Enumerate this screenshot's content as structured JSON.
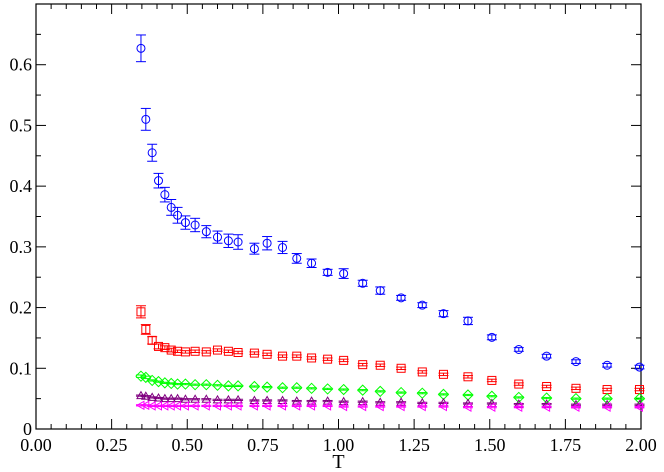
{
  "chart_data": {
    "type": "scatter",
    "title": "",
    "xlabel": "T",
    "ylabel": "",
    "xlim": [
      0.0,
      2.0
    ],
    "ylim": [
      0.0,
      0.7
    ],
    "grid": false,
    "x_ticks": [
      "0.00",
      "0.25",
      "0.50",
      "0.75",
      "1.00",
      "1.25",
      "1.50",
      "1.75",
      "2.00"
    ],
    "y_ticks": [
      "0",
      "0.1",
      "0.2",
      "0.3",
      "0.4",
      "0.5",
      "0.6"
    ],
    "series": [
      {
        "marker": "circle",
        "color": "#0000ff",
        "points": [
          {
            "x": 0.347,
            "y": 0.627,
            "err": 0.022
          },
          {
            "x": 0.363,
            "y": 0.51,
            "err": 0.018
          },
          {
            "x": 0.384,
            "y": 0.455,
            "err": 0.014
          },
          {
            "x": 0.405,
            "y": 0.409,
            "err": 0.012
          },
          {
            "x": 0.426,
            "y": 0.386,
            "err": 0.012
          },
          {
            "x": 0.447,
            "y": 0.365,
            "err": 0.013
          },
          {
            "x": 0.468,
            "y": 0.352,
            "err": 0.013
          },
          {
            "x": 0.494,
            "y": 0.34,
            "err": 0.011
          },
          {
            "x": 0.526,
            "y": 0.336,
            "err": 0.011
          },
          {
            "x": 0.563,
            "y": 0.325,
            "err": 0.01
          },
          {
            "x": 0.6,
            "y": 0.316,
            "err": 0.01
          },
          {
            "x": 0.636,
            "y": 0.31,
            "err": 0.011
          },
          {
            "x": 0.668,
            "y": 0.308,
            "err": 0.012
          },
          {
            "x": 0.722,
            "y": 0.297,
            "err": 0.009
          },
          {
            "x": 0.764,
            "y": 0.306,
            "err": 0.011
          },
          {
            "x": 0.815,
            "y": 0.299,
            "err": 0.01
          },
          {
            "x": 0.862,
            "y": 0.281,
            "err": 0.008
          },
          {
            "x": 0.911,
            "y": 0.273,
            "err": 0.007
          },
          {
            "x": 0.964,
            "y": 0.258,
            "err": 0.005
          },
          {
            "x": 1.017,
            "y": 0.256,
            "err": 0.008
          },
          {
            "x": 1.08,
            "y": 0.24,
            "err": 0.005
          },
          {
            "x": 1.138,
            "y": 0.228,
            "err": 0.006
          },
          {
            "x": 1.207,
            "y": 0.216,
            "err": 0.004
          },
          {
            "x": 1.277,
            "y": 0.204,
            "err": 0.004
          },
          {
            "x": 1.347,
            "y": 0.19,
            "err": 0.005
          },
          {
            "x": 1.428,
            "y": 0.178,
            "err": 0.006
          },
          {
            "x": 1.507,
            "y": 0.151,
            "err": 0.004
          },
          {
            "x": 1.596,
            "y": 0.131,
            "err": 0.003
          },
          {
            "x": 1.688,
            "y": 0.12,
            "err": 0.003
          },
          {
            "x": 1.785,
            "y": 0.111,
            "err": 0.003
          },
          {
            "x": 1.888,
            "y": 0.105,
            "err": 0.003
          },
          {
            "x": 1.995,
            "y": 0.102,
            "err": 0.003
          }
        ]
      },
      {
        "marker": "square",
        "color": "#ff0000",
        "points": [
          {
            "x": 0.347,
            "y": 0.193,
            "err": 0.01
          },
          {
            "x": 0.363,
            "y": 0.164,
            "err": 0.008
          },
          {
            "x": 0.384,
            "y": 0.146,
            "err": 0.006
          },
          {
            "x": 0.405,
            "y": 0.136,
            "err": 0.004
          },
          {
            "x": 0.426,
            "y": 0.134,
            "err": 0.003
          },
          {
            "x": 0.447,
            "y": 0.13,
            "err": 0.003
          },
          {
            "x": 0.468,
            "y": 0.128,
            "err": 0.002
          },
          {
            "x": 0.494,
            "y": 0.127,
            "err": 0.002
          },
          {
            "x": 0.526,
            "y": 0.128,
            "err": 0.002
          },
          {
            "x": 0.563,
            "y": 0.127,
            "err": 0.002
          },
          {
            "x": 0.6,
            "y": 0.13,
            "err": 0.002
          },
          {
            "x": 0.636,
            "y": 0.128,
            "err": 0.002
          },
          {
            "x": 0.668,
            "y": 0.126,
            "err": 0.002
          },
          {
            "x": 0.722,
            "y": 0.125,
            "err": 0.002
          },
          {
            "x": 0.764,
            "y": 0.123,
            "err": 0.002
          },
          {
            "x": 0.815,
            "y": 0.12,
            "err": 0.002
          },
          {
            "x": 0.862,
            "y": 0.12,
            "err": 0.002
          },
          {
            "x": 0.911,
            "y": 0.117,
            "err": 0.002
          },
          {
            "x": 0.964,
            "y": 0.115,
            "err": 0.002
          },
          {
            "x": 1.017,
            "y": 0.113,
            "err": 0.002
          },
          {
            "x": 1.08,
            "y": 0.106,
            "err": 0.002
          },
          {
            "x": 1.138,
            "y": 0.105,
            "err": 0.002
          },
          {
            "x": 1.207,
            "y": 0.1,
            "err": 0.002
          },
          {
            "x": 1.277,
            "y": 0.094,
            "err": 0.002
          },
          {
            "x": 1.347,
            "y": 0.09,
            "err": 0.002
          },
          {
            "x": 1.428,
            "y": 0.086,
            "err": 0.002
          },
          {
            "x": 1.507,
            "y": 0.08,
            "err": 0.002
          },
          {
            "x": 1.596,
            "y": 0.074,
            "err": 0.002
          },
          {
            "x": 1.688,
            "y": 0.07,
            "err": 0.002
          },
          {
            "x": 1.785,
            "y": 0.067,
            "err": 0.002
          },
          {
            "x": 1.888,
            "y": 0.065,
            "err": 0.002
          },
          {
            "x": 1.995,
            "y": 0.065,
            "err": 0.002
          }
        ]
      },
      {
        "marker": "diamond",
        "color": "#00ff00",
        "points": [
          {
            "x": 0.347,
            "y": 0.087,
            "err": 0.002
          },
          {
            "x": 0.363,
            "y": 0.085,
            "err": 0.002
          },
          {
            "x": 0.384,
            "y": 0.08,
            "err": 0.001
          },
          {
            "x": 0.405,
            "y": 0.078,
            "err": 0.001
          },
          {
            "x": 0.426,
            "y": 0.076,
            "err": 0.001
          },
          {
            "x": 0.447,
            "y": 0.075,
            "err": 0.001
          },
          {
            "x": 0.468,
            "y": 0.074,
            "err": 0.001
          },
          {
            "x": 0.494,
            "y": 0.074,
            "err": 0.001
          },
          {
            "x": 0.526,
            "y": 0.073,
            "err": 0.001
          },
          {
            "x": 0.563,
            "y": 0.073,
            "err": 0.001
          },
          {
            "x": 0.6,
            "y": 0.072,
            "err": 0.001
          },
          {
            "x": 0.636,
            "y": 0.071,
            "err": 0.001
          },
          {
            "x": 0.668,
            "y": 0.071,
            "err": 0.001
          },
          {
            "x": 0.722,
            "y": 0.07,
            "err": 0.001
          },
          {
            "x": 0.764,
            "y": 0.069,
            "err": 0.001
          },
          {
            "x": 0.815,
            "y": 0.068,
            "err": 0.001
          },
          {
            "x": 0.862,
            "y": 0.068,
            "err": 0.001
          },
          {
            "x": 0.911,
            "y": 0.067,
            "err": 0.001
          },
          {
            "x": 0.964,
            "y": 0.066,
            "err": 0.001
          },
          {
            "x": 1.017,
            "y": 0.065,
            "err": 0.001
          },
          {
            "x": 1.08,
            "y": 0.064,
            "err": 0.001
          },
          {
            "x": 1.138,
            "y": 0.062,
            "err": 0.001
          },
          {
            "x": 1.207,
            "y": 0.06,
            "err": 0.001
          },
          {
            "x": 1.277,
            "y": 0.059,
            "err": 0.001
          },
          {
            "x": 1.347,
            "y": 0.057,
            "err": 0.001
          },
          {
            "x": 1.428,
            "y": 0.056,
            "err": 0.001
          },
          {
            "x": 1.507,
            "y": 0.054,
            "err": 0.001
          },
          {
            "x": 1.596,
            "y": 0.052,
            "err": 0.001
          },
          {
            "x": 1.688,
            "y": 0.051,
            "err": 0.001
          },
          {
            "x": 1.785,
            "y": 0.05,
            "err": 0.001
          },
          {
            "x": 1.888,
            "y": 0.05,
            "err": 0.001
          },
          {
            "x": 1.995,
            "y": 0.05,
            "err": 0.001
          }
        ]
      },
      {
        "marker": "triangle-up",
        "color": "#800080",
        "points": [
          {
            "x": 0.347,
            "y": 0.055,
            "err": 0.001
          },
          {
            "x": 0.363,
            "y": 0.054,
            "err": 0.001
          },
          {
            "x": 0.384,
            "y": 0.052,
            "err": 0.001
          },
          {
            "x": 0.405,
            "y": 0.051,
            "err": 0.001
          },
          {
            "x": 0.426,
            "y": 0.05,
            "err": 0.001
          },
          {
            "x": 0.447,
            "y": 0.05,
            "err": 0.001
          },
          {
            "x": 0.468,
            "y": 0.05,
            "err": 0.001
          },
          {
            "x": 0.494,
            "y": 0.049,
            "err": 0.001
          },
          {
            "x": 0.526,
            "y": 0.049,
            "err": 0.001
          },
          {
            "x": 0.563,
            "y": 0.049,
            "err": 0.001
          },
          {
            "x": 0.6,
            "y": 0.048,
            "err": 0.001
          },
          {
            "x": 0.636,
            "y": 0.048,
            "err": 0.001
          },
          {
            "x": 0.668,
            "y": 0.048,
            "err": 0.001
          },
          {
            "x": 0.722,
            "y": 0.047,
            "err": 0.001
          },
          {
            "x": 0.764,
            "y": 0.047,
            "err": 0.001
          },
          {
            "x": 0.815,
            "y": 0.047,
            "err": 0.001
          },
          {
            "x": 0.862,
            "y": 0.046,
            "err": 0.001
          },
          {
            "x": 0.911,
            "y": 0.046,
            "err": 0.001
          },
          {
            "x": 0.964,
            "y": 0.046,
            "err": 0.001
          },
          {
            "x": 1.017,
            "y": 0.045,
            "err": 0.001
          },
          {
            "x": 1.08,
            "y": 0.045,
            "err": 0.001
          },
          {
            "x": 1.138,
            "y": 0.044,
            "err": 0.001
          },
          {
            "x": 1.207,
            "y": 0.044,
            "err": 0.001
          },
          {
            "x": 1.277,
            "y": 0.043,
            "err": 0.001
          },
          {
            "x": 1.347,
            "y": 0.043,
            "err": 0.001
          },
          {
            "x": 1.428,
            "y": 0.042,
            "err": 0.001
          },
          {
            "x": 1.507,
            "y": 0.042,
            "err": 0.001
          },
          {
            "x": 1.596,
            "y": 0.041,
            "err": 0.001
          },
          {
            "x": 1.688,
            "y": 0.041,
            "err": 0.001
          },
          {
            "x": 1.785,
            "y": 0.04,
            "err": 0.001
          },
          {
            "x": 1.888,
            "y": 0.04,
            "err": 0.001
          },
          {
            "x": 1.995,
            "y": 0.04,
            "err": 0.001
          }
        ]
      },
      {
        "marker": "triangle-left",
        "color": "#ff00ff",
        "points": [
          {
            "x": 0.347,
            "y": 0.039,
            "err": 0.001
          },
          {
            "x": 0.363,
            "y": 0.039,
            "err": 0.001
          },
          {
            "x": 0.384,
            "y": 0.038,
            "err": 0.001
          },
          {
            "x": 0.405,
            "y": 0.038,
            "err": 0.001
          },
          {
            "x": 0.426,
            "y": 0.038,
            "err": 0.001
          },
          {
            "x": 0.447,
            "y": 0.038,
            "err": 0.001
          },
          {
            "x": 0.468,
            "y": 0.038,
            "err": 0.001
          },
          {
            "x": 0.494,
            "y": 0.038,
            "err": 0.001
          },
          {
            "x": 0.526,
            "y": 0.038,
            "err": 0.001
          },
          {
            "x": 0.563,
            "y": 0.038,
            "err": 0.001
          },
          {
            "x": 0.6,
            "y": 0.038,
            "err": 0.001
          },
          {
            "x": 0.636,
            "y": 0.038,
            "err": 0.001
          },
          {
            "x": 0.668,
            "y": 0.038,
            "err": 0.001
          },
          {
            "x": 0.722,
            "y": 0.038,
            "err": 0.001
          },
          {
            "x": 0.764,
            "y": 0.038,
            "err": 0.001
          },
          {
            "x": 0.815,
            "y": 0.038,
            "err": 0.001
          },
          {
            "x": 0.862,
            "y": 0.038,
            "err": 0.001
          },
          {
            "x": 0.911,
            "y": 0.038,
            "err": 0.001
          },
          {
            "x": 0.964,
            "y": 0.038,
            "err": 0.001
          },
          {
            "x": 1.017,
            "y": 0.037,
            "err": 0.001
          },
          {
            "x": 1.08,
            "y": 0.037,
            "err": 0.001
          },
          {
            "x": 1.138,
            "y": 0.037,
            "err": 0.001
          },
          {
            "x": 1.207,
            "y": 0.037,
            "err": 0.001
          },
          {
            "x": 1.277,
            "y": 0.037,
            "err": 0.001
          },
          {
            "x": 1.347,
            "y": 0.037,
            "err": 0.001
          },
          {
            "x": 1.428,
            "y": 0.036,
            "err": 0.001
          },
          {
            "x": 1.507,
            "y": 0.036,
            "err": 0.001
          },
          {
            "x": 1.596,
            "y": 0.036,
            "err": 0.001
          },
          {
            "x": 1.688,
            "y": 0.036,
            "err": 0.001
          },
          {
            "x": 1.785,
            "y": 0.036,
            "err": 0.001
          },
          {
            "x": 1.888,
            "y": 0.036,
            "err": 0.001
          },
          {
            "x": 1.995,
            "y": 0.036,
            "err": 0.001
          }
        ]
      }
    ]
  }
}
